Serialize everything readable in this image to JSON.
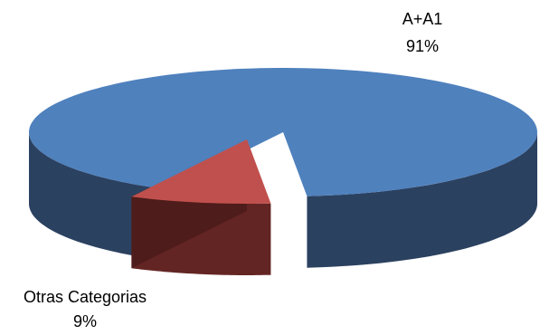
{
  "chart_data": {
    "type": "pie",
    "style": "3d-exploded",
    "categories": [
      "A+A1",
      "Otras Categorias"
    ],
    "values": [
      91,
      9
    ],
    "labels": [
      {
        "name": "A+A1",
        "value": "91%"
      },
      {
        "name": "Otras Categorias",
        "value": "9%"
      }
    ],
    "colors": [
      "#4f81bd",
      "#c0504d"
    ],
    "side_colors": [
      "#2b4160",
      "#632523"
    ],
    "title": "",
    "legend": "none"
  }
}
